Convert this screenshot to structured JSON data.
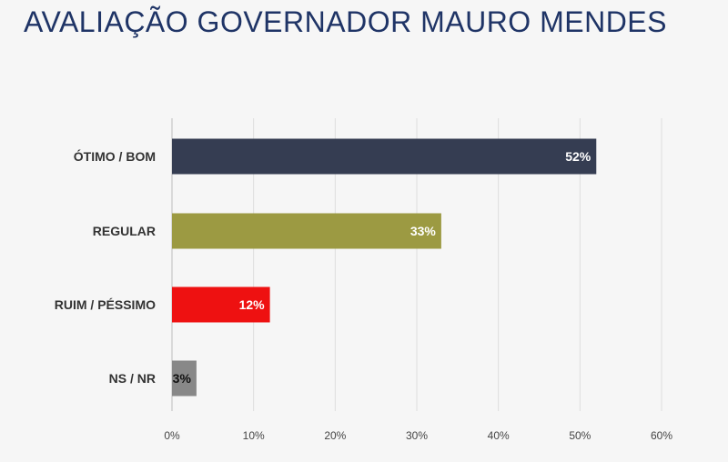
{
  "chart_data": {
    "type": "bar",
    "orientation": "horizontal",
    "title": "AVALIAÇÃO GOVERNADOR MAURO MENDES",
    "categories": [
      "ÓTIMO / BOM",
      "REGULAR",
      "RUIM / PÉSSIMO",
      "NS / NR"
    ],
    "values": [
      52,
      33,
      12,
      3
    ],
    "value_labels": [
      "52%",
      "33%",
      "12%",
      "3%"
    ],
    "bar_colors": [
      "#353d52",
      "#9c9a42",
      "#ee1111",
      "#888888"
    ],
    "value_label_colors": [
      "#ffffff",
      "#ffffff",
      "#ffffff",
      "#111111"
    ],
    "xlim": [
      0,
      60
    ],
    "xticks": [
      0,
      10,
      20,
      30,
      40,
      50,
      60
    ],
    "xtick_labels": [
      "0%",
      "10%",
      "20%",
      "30%",
      "40%",
      "50%",
      "60%"
    ],
    "xlabel": "",
    "ylabel": "",
    "grid": "vertical",
    "legend": "none"
  }
}
